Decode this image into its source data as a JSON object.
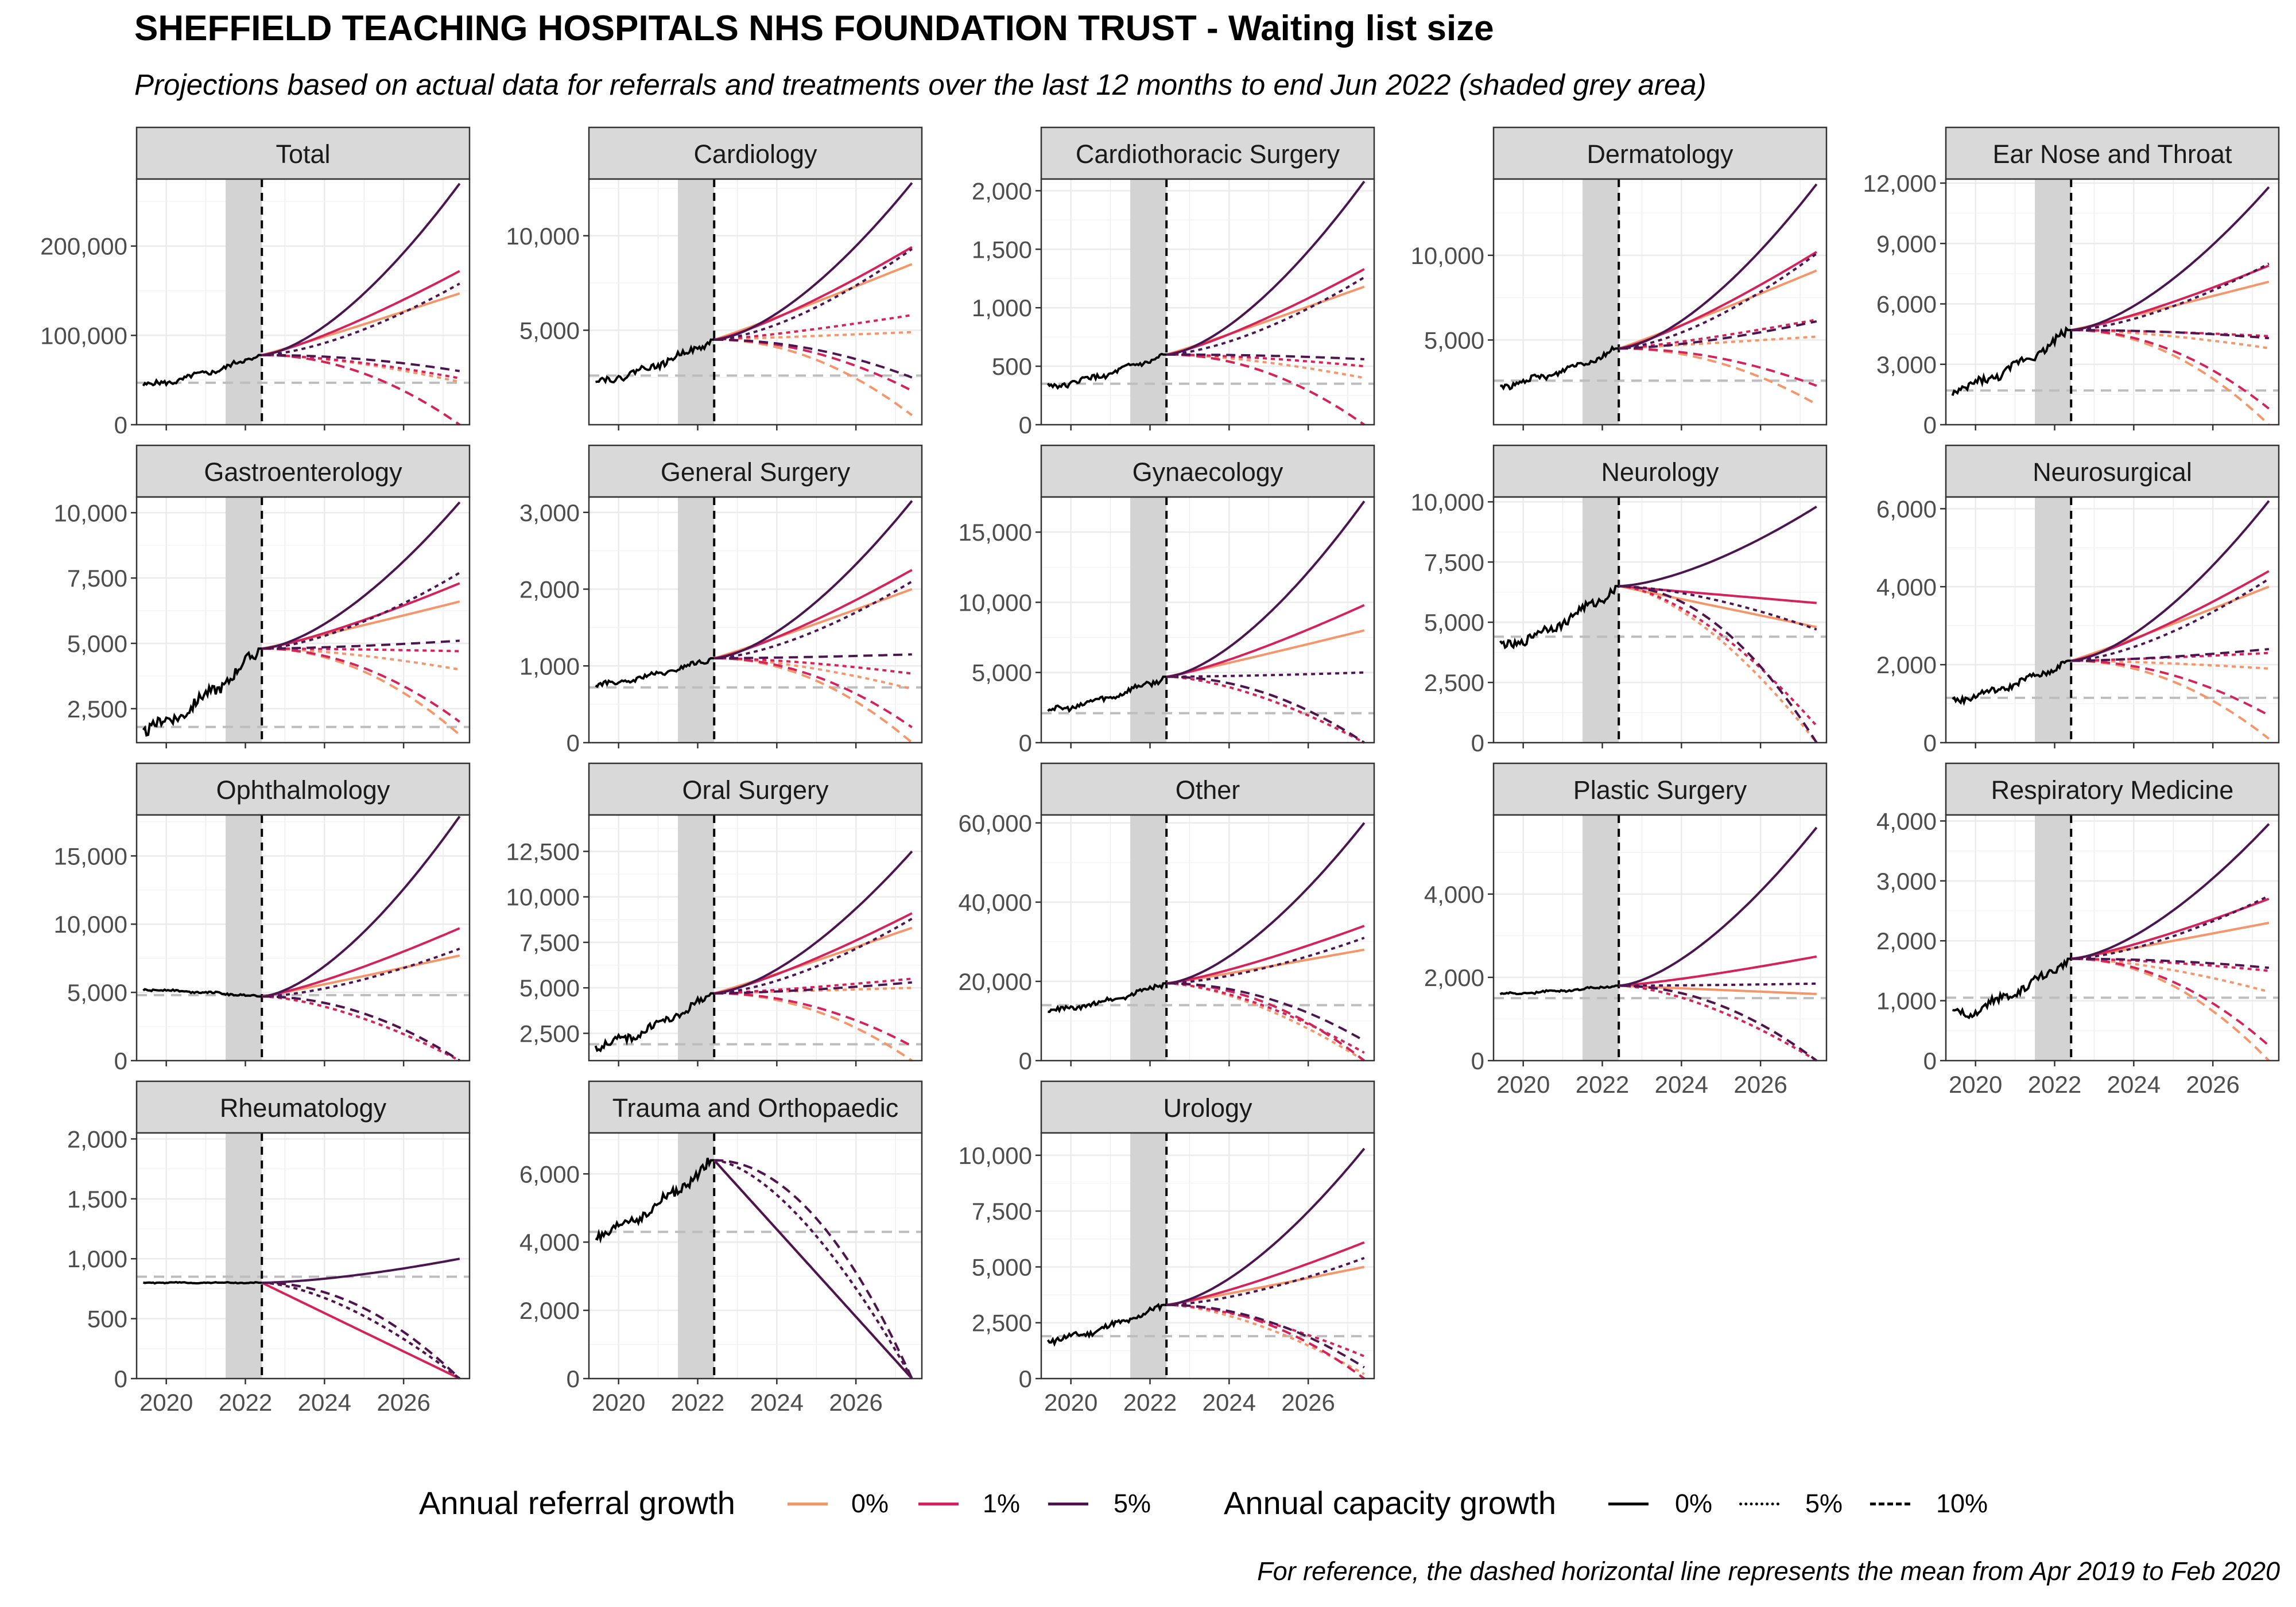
{
  "title": "SHEFFIELD TEACHING HOSPITALS NHS FOUNDATION TRUST - Waiting list size",
  "subtitle": "Projections based on actual data for referrals and treatments over the last 12 months to end Jun 2022 (shaded grey area)",
  "caption": "For reference, the dashed horizontal line represents the mean from Apr 2019 to Feb 2020",
  "legend": {
    "referral_title": "Annual referral growth",
    "referral_items": [
      {
        "label": "0%",
        "color": "#f4956a"
      },
      {
        "label": "1%",
        "color": "#d3235a"
      },
      {
        "label": "5%",
        "color": "#4b1650"
      }
    ],
    "capacity_title": "Annual capacity growth",
    "capacity_items": [
      {
        "label": "0%",
        "style": "solid"
      },
      {
        "label": "5%",
        "style": "dotted"
      },
      {
        "label": "10%",
        "style": "dashed"
      }
    ]
  },
  "chart_data": {
    "type": "line",
    "facet_type": "small-multiples",
    "x_range": [
      "2019-04",
      "2027-09"
    ],
    "x_ticks": [
      "2020",
      "2022",
      "2024",
      "2026"
    ],
    "shaded_window": [
      "2021-07",
      "2022-06"
    ],
    "projection_start": "2022-06",
    "grid": true,
    "colors": {
      "0%": "#f4956a",
      "1%": "#d3235a",
      "5%": "#4b1650"
    },
    "panels": [
      {
        "title": "Total",
        "ylim": [
          0,
          275000
        ],
        "yticks": [
          0,
          100000,
          200000
        ],
        "tick_labels": [
          "0",
          "100,000",
          "200,000"
        ],
        "ref": 47000,
        "history_start": 44000,
        "proj_start": 78000,
        "end": {
          "r0c0": 147000,
          "r1c0": 172000,
          "r5c0": 270000,
          "r0c5": 48000,
          "r1c5": 52000,
          "r5c5": 158000,
          "r0c10": 0,
          "r1c10": 0,
          "r5c10": 60000
        }
      },
      {
        "title": "Cardiology",
        "ylim": [
          0,
          13000
        ],
        "yticks": [
          5000,
          10000
        ],
        "tick_labels": [
          "5,000",
          "10,000"
        ],
        "ref": 2600,
        "history_start": 2300,
        "proj_start": 4500,
        "end": {
          "r0c0": 8500,
          "r1c0": 9400,
          "r5c0": 12800,
          "r0c5": 4900,
          "r1c5": 5800,
          "r5c5": 9300,
          "r0c10": 500,
          "r1c10": 1800,
          "r5c10": 2500
        }
      },
      {
        "title": "Cardiothoracic Surgery",
        "ylim": [
          0,
          2100
        ],
        "yticks": [
          0,
          500,
          1000,
          1500,
          2000
        ],
        "tick_labels": [
          "0",
          "500",
          "1,000",
          "1,500",
          "2,000"
        ],
        "ref": 350,
        "history_start": 330,
        "proj_start": 600,
        "end": {
          "r0c0": 1180,
          "r1c0": 1330,
          "r5c0": 2080,
          "r0c5": 400,
          "r1c5": 500,
          "r5c5": 1260,
          "r0c10": 0,
          "r1c10": 0,
          "r5c10": 560
        }
      },
      {
        "title": "Dermatology",
        "ylim": [
          0,
          14500
        ],
        "yticks": [
          5000,
          10000
        ],
        "tick_labels": [
          "5,000",
          "10,000"
        ],
        "ref": 2600,
        "history_start": 2300,
        "proj_start": 4500,
        "end": {
          "r0c0": 9100,
          "r1c0": 10200,
          "r5c0": 14200,
          "r0c5": 5200,
          "r1c5": 6200,
          "r5c5": 10100,
          "r0c10": 1200,
          "r1c10": 2300,
          "r5c10": 6100
        }
      },
      {
        "title": "Ear Nose and Throat",
        "ylim": [
          0,
          12200
        ],
        "yticks": [
          0,
          3000,
          6000,
          9000,
          12000
        ],
        "tick_labels": [
          "0",
          "3,000",
          "6,000",
          "9,000",
          "12,000"
        ],
        "ref": 1700,
        "history_start": 1700,
        "proj_start": 4700,
        "end": {
          "r0c0": 7100,
          "r1c0": 7900,
          "r5c0": 11800,
          "r0c5": 3800,
          "r1c5": 4400,
          "r5c5": 8000,
          "r0c10": 0,
          "r1c10": 800,
          "r5c10": 4300
        }
      },
      {
        "title": "Gastroenterology",
        "ylim": [
          1200,
          10600
        ],
        "yticks": [
          2500,
          5000,
          7500,
          10000
        ],
        "tick_labels": [
          "2,500",
          "5,000",
          "7,500",
          "10,000"
        ],
        "ref": 1800,
        "history_start": 1700,
        "proj_start": 4800,
        "end": {
          "r0c0": 6600,
          "r1c0": 7300,
          "r5c0": 10400,
          "r0c5": 4000,
          "r1c5": 4700,
          "r5c5": 7700,
          "r0c10": 1500,
          "r1c10": 2000,
          "r5c10": 5100
        }
      },
      {
        "title": "General Surgery",
        "ylim": [
          0,
          3200
        ],
        "yticks": [
          0,
          1000,
          2000,
          3000
        ],
        "tick_labels": [
          "0",
          "1,000",
          "2,000",
          "3,000"
        ],
        "ref": 720,
        "history_start": 750,
        "proj_start": 1100,
        "end": {
          "r0c0": 2000,
          "r1c0": 2250,
          "r5c0": 3150,
          "r0c5": 700,
          "r1c5": 900,
          "r5c5": 2100,
          "r0c10": 0,
          "r1c10": 200,
          "r5c10": 1150
        }
      },
      {
        "title": "Gynaecology",
        "ylim": [
          0,
          17500
        ],
        "yticks": [
          0,
          5000,
          10000,
          15000
        ],
        "tick_labels": [
          "0",
          "5,000",
          "10,000",
          "15,000"
        ],
        "ref": 2100,
        "history_start": 2300,
        "proj_start": 4700,
        "end": {
          "r0c0": 8000,
          "r1c0": 9800,
          "r5c0": 17200,
          "r0c5": 0,
          "r1c5": 0,
          "r5c5": 5000,
          "r0c10": 0,
          "r1c10": 0,
          "r5c10": 0
        }
      },
      {
        "title": "Neurology",
        "ylim": [
          0,
          10200
        ],
        "yticks": [
          0,
          2500,
          5000,
          7500,
          10000
        ],
        "tick_labels": [
          "0",
          "2,500",
          "5,000",
          "7,500",
          "10,000"
        ],
        "ref": 4400,
        "history_start": 4000,
        "proj_start": 6500,
        "end": {
          "r0c0": 4800,
          "r1c0": 5800,
          "r5c0": 9800,
          "r0c5": 0,
          "r1c5": 700,
          "r5c5": 4700,
          "r0c10": 0,
          "r1c10": 0,
          "r5c10": 0
        }
      },
      {
        "title": "Neurosurgical",
        "ylim": [
          0,
          6300
        ],
        "yticks": [
          0,
          2000,
          4000,
          6000
        ],
        "tick_labels": [
          "0",
          "2,000",
          "4,000",
          "6,000"
        ],
        "ref": 1150,
        "history_start": 1100,
        "proj_start": 2100,
        "end": {
          "r0c0": 4000,
          "r1c0": 4400,
          "r5c0": 6200,
          "r0c5": 1900,
          "r1c5": 2300,
          "r5c5": 4200,
          "r0c10": 100,
          "r1c10": 700,
          "r5c10": 2400
        }
      },
      {
        "title": "Ophthalmology",
        "ylim": [
          0,
          18000
        ],
        "yticks": [
          0,
          5000,
          10000,
          15000
        ],
        "tick_labels": [
          "0",
          "5,000",
          "10,000",
          "15,000"
        ],
        "ref": 4800,
        "history_start": 5200,
        "proj_start": 4700,
        "end": {
          "r0c0": 7700,
          "r1c0": 9700,
          "r5c0": 17900,
          "r0c5": 0,
          "r1c5": 0,
          "r5c5": 8200,
          "r0c10": 0,
          "r1c10": 0,
          "r5c10": 0
        }
      },
      {
        "title": "Oral Surgery",
        "ylim": [
          1000,
          14500
        ],
        "yticks": [
          2500,
          5000,
          7500,
          10000,
          12500
        ],
        "tick_labels": [
          "2,500",
          "5,000",
          "7,500",
          "10,000",
          "12,500"
        ],
        "ref": 1900,
        "history_start": 1800,
        "proj_start": 4700,
        "end": {
          "r0c0": 8300,
          "r1c0": 9100,
          "r5c0": 12500,
          "r0c5": 5000,
          "r1c5": 5500,
          "r5c5": 8800,
          "r0c10": 1000,
          "r1c10": 1800,
          "r5c10": 5300
        }
      },
      {
        "title": "Other",
        "ylim": [
          0,
          62000
        ],
        "yticks": [
          0,
          20000,
          40000,
          60000
        ],
        "tick_labels": [
          "0",
          "20,000",
          "40,000",
          "60,000"
        ],
        "ref": 14000,
        "history_start": 12500,
        "proj_start": 19500,
        "end": {
          "r0c0": 28000,
          "r1c0": 34000,
          "r5c0": 60000,
          "r0c5": 0,
          "r1c5": 2000,
          "r5c5": 31000,
          "r0c10": 0,
          "r1c10": 0,
          "r5c10": 5000
        }
      },
      {
        "title": "Plastic Surgery",
        "ylim": [
          0,
          5900
        ],
        "yticks": [
          0,
          2000,
          4000
        ],
        "tick_labels": [
          "0",
          "2,000",
          "4,000"
        ],
        "ref": 1500,
        "history_start": 1600,
        "proj_start": 1800,
        "end": {
          "r0c0": 1600,
          "r1c0": 2500,
          "r5c0": 5600,
          "r0c5": 0,
          "r1c5": 0,
          "r5c5": 1850,
          "r0c10": 0,
          "r1c10": 0,
          "r5c10": 0
        }
      },
      {
        "title": "Respiratory Medicine",
        "ylim": [
          0,
          4100
        ],
        "yticks": [
          0,
          1000,
          2000,
          3000,
          4000
        ],
        "tick_labels": [
          "0",
          "1,000",
          "2,000",
          "3,000",
          "4,000"
        ],
        "ref": 1050,
        "history_start": 750,
        "proj_start": 1700,
        "end": {
          "r0c0": 2300,
          "r1c0": 2700,
          "r5c0": 3950,
          "r0c5": 1150,
          "r1c5": 1500,
          "r5c5": 2750,
          "r0c10": 0,
          "r1c10": 250,
          "r5c10": 1550
        }
      },
      {
        "title": "Rheumatology",
        "ylim": [
          0,
          2050
        ],
        "yticks": [
          0,
          500,
          1000,
          1500,
          2000
        ],
        "tick_labels": [
          "0",
          "500",
          "1,000",
          "1,500",
          "2,000"
        ],
        "ref": 850,
        "history_start": 800,
        "proj_start": 800,
        "end": {
          "r0c0": 0,
          "r1c0": 0,
          "r5c0": 1000,
          "r0c5": 0,
          "r1c5": 0,
          "r5c5": 0,
          "r0c10": 0,
          "r1c10": 0,
          "r5c10": 0
        }
      },
      {
        "title": "Trauma and Orthopaedic",
        "ylim": [
          0,
          7200
        ],
        "yticks": [
          0,
          2000,
          4000,
          6000
        ],
        "tick_labels": [
          "0",
          "2,000",
          "4,000",
          "6,000"
        ],
        "ref": 4300,
        "history_start": 4200,
        "proj_start": 6400,
        "end": {
          "r0c0": 0,
          "r1c0": 0,
          "r5c0": 0,
          "r0c5": 0,
          "r1c5": 0,
          "r5c5": 0,
          "r0c10": 0,
          "r1c10": 0,
          "r5c10": 0
        }
      },
      {
        "title": "Urology",
        "ylim": [
          0,
          11000
        ],
        "yticks": [
          0,
          2500,
          5000,
          7500,
          10000
        ],
        "tick_labels": [
          "0",
          "2,500",
          "5,000",
          "7,500",
          "10,000"
        ],
        "ref": 1900,
        "history_start": 1700,
        "proj_start": 3300,
        "end": {
          "r0c0": 5000,
          "r1c0": 6100,
          "r5c0": 10300,
          "r0c5": 200,
          "r1c5": 1000,
          "r5c5": 5400,
          "r0c10": 0,
          "r1c10": 0,
          "r5c10": 500
        }
      }
    ]
  }
}
